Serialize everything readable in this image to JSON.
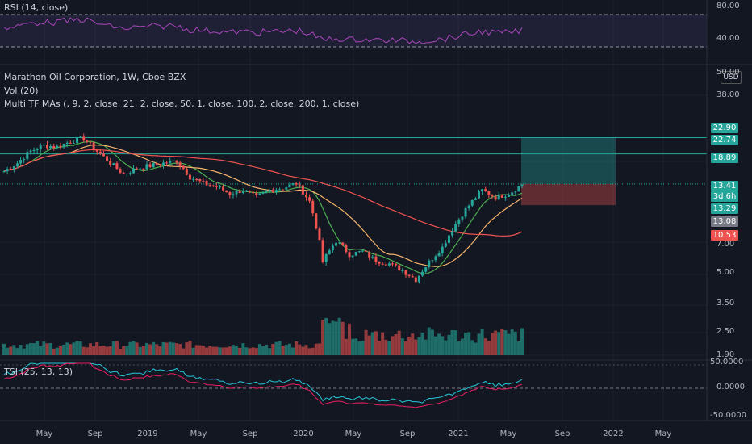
{
  "rsi": {
    "title": "RSI (14, close)",
    "levels": [
      {
        "label": "80.00"
      },
      {
        "label": "40.00"
      }
    ]
  },
  "main": {
    "title": "Marathon Oil Corporation, 1W, Cboe BZX",
    "vol_label": "Vol (20)",
    "ma_label": "Multi TF MAs (, 9, 2, close, 21, 2, close, 50, 1, close, 100, 2, close, 200, 1, close)",
    "currency": "USD",
    "price_axis": [
      "50.00",
      "38.00",
      "22.90",
      "22.74",
      "18.89",
      "13.41",
      "3d 6h",
      "13.29",
      "13.08",
      "10.53",
      "7.00",
      "5.00",
      "3.50",
      "2.50",
      "1.90"
    ],
    "tags": [
      {
        "label": "22.90",
        "color": "#26a69a"
      },
      {
        "label": "22.74",
        "color": "#26a69a"
      },
      {
        "label": "18.89",
        "color": "#26a69a"
      },
      {
        "label": "13.41",
        "color": "#26a69a"
      },
      {
        "label": "3d 6h",
        "color": "#26a69a"
      },
      {
        "label": "13.29",
        "color": "#26a69a"
      },
      {
        "label": "13.08",
        "color": "#787b86"
      },
      {
        "label": "10.53",
        "color": "#ef5350"
      }
    ],
    "plain_ticks": [
      "50.00",
      "38.00",
      "7.00",
      "5.00",
      "3.50",
      "2.50",
      "1.90"
    ]
  },
  "tsi": {
    "title": "TSI (25, 13, 13)",
    "axis": [
      "50.0000",
      "0.0000",
      "-50.0000"
    ]
  },
  "time_axis": [
    "May",
    "Sep",
    "2019",
    "May",
    "Sep",
    "2020",
    "May",
    "Sep",
    "2021",
    "May",
    "Sep",
    "2022",
    "May"
  ],
  "colors": {
    "up": "#26a69a",
    "down": "#ef5350",
    "bg": "#131722",
    "grid": "#1e222d"
  },
  "chart_data": {
    "type": "candlestick",
    "title": "Marathon Oil Corporation, 1W, Cboe BZX",
    "log_scale": true,
    "ylim": [
      1.9,
      50
    ],
    "x": [
      "2018-03",
      "2018-04",
      "2018-05",
      "2018-06",
      "2018-07",
      "2018-08",
      "2018-09",
      "2018-10",
      "2018-11",
      "2018-12",
      "2019-01",
      "2019-02",
      "2019-03",
      "2019-04",
      "2019-05",
      "2019-06",
      "2019-07",
      "2019-08",
      "2019-09",
      "2019-10",
      "2019-11",
      "2019-12",
      "2020-01",
      "2020-02",
      "2020-03",
      "2020-04",
      "2020-05",
      "2020-06",
      "2020-07",
      "2020-08",
      "2020-09",
      "2020-10",
      "2020-11",
      "2020-12",
      "2021-01",
      "2021-02",
      "2021-03",
      "2021-04",
      "2021-05",
      "2021-06"
    ],
    "close": [
      15.5,
      17.0,
      19.5,
      20.8,
      20.5,
      21.8,
      22.5,
      19.5,
      17.0,
      15.0,
      16.0,
      16.5,
      17.0,
      17.5,
      14.5,
      13.5,
      13.0,
      12.0,
      12.5,
      11.5,
      12.5,
      12.8,
      13.5,
      11.0,
      5.5,
      7.0,
      6.0,
      6.2,
      5.6,
      5.4,
      5.0,
      4.5,
      5.5,
      6.5,
      8.5,
      10.5,
      12.5,
      11.5,
      12.0,
      13.3
    ],
    "series": [
      {
        "name": "RSI",
        "range": [
          20,
          90
        ],
        "levels": [
          70,
          30
        ]
      },
      {
        "name": "TSI",
        "range": [
          -60,
          55
        ]
      }
    ],
    "long_position": {
      "entry": 13.41,
      "target": 22.74,
      "stop": 10.53
    }
  }
}
